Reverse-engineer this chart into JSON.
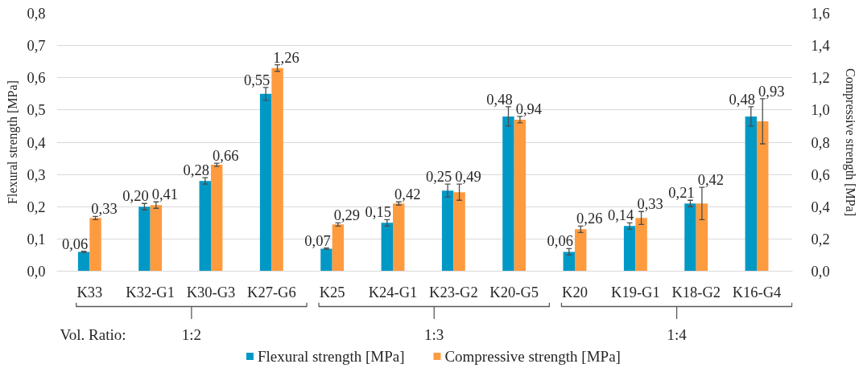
{
  "chart_data": {
    "type": "bar",
    "categories": [
      "K33",
      "K32-G1",
      "K30-G3",
      "K27-G6",
      "K25",
      "K24-G1",
      "K23-G2",
      "K20-G5",
      "K20",
      "K19-G1",
      "K18-G2",
      "K16-G4"
    ],
    "ylabel": "Flexural strength [MPa]",
    "y2label": "Compressive strength [MPa]",
    "ylim": [
      0,
      0.8
    ],
    "yticks": [
      {
        "value": 0,
        "label": "0,0"
      },
      {
        "value": 0.1,
        "label": "0,1"
      },
      {
        "value": 0.2,
        "label": "0,2"
      },
      {
        "value": 0.3,
        "label": "0,3"
      },
      {
        "value": 0.4,
        "label": "0,4"
      },
      {
        "value": 0.5,
        "label": "0,5"
      },
      {
        "value": 0.6,
        "label": "0,6"
      },
      {
        "value": 0.7,
        "label": "0,7"
      },
      {
        "value": 0.8,
        "label": "0,8"
      }
    ],
    "y2lim": [
      0,
      1.6
    ],
    "y2ticks": [
      {
        "value": 0,
        "label": "0,0"
      },
      {
        "value": 0.2,
        "label": "0,2"
      },
      {
        "value": 0.4,
        "label": "0,4"
      },
      {
        "value": 0.6,
        "label": "0,6"
      },
      {
        "value": 0.8,
        "label": "0,8"
      },
      {
        "value": 1.0,
        "label": "1,0"
      },
      {
        "value": 1.2,
        "label": "1,2"
      },
      {
        "value": 1.4,
        "label": "1,4"
      },
      {
        "value": 1.6,
        "label": "1,6"
      }
    ],
    "series": [
      {
        "name": "Flexural strength [MPa]",
        "color": "#0099c6",
        "values": [
          0.06,
          0.2,
          0.28,
          0.55,
          0.07,
          0.15,
          0.25,
          0.48,
          0.06,
          0.14,
          0.21,
          0.48
        ],
        "errors": [
          0.002,
          0.01,
          0.01,
          0.02,
          0.002,
          0.01,
          0.02,
          0.03,
          0.01,
          0.01,
          0.01,
          0.03
        ],
        "value_labels": [
          "0,06",
          "0,20",
          "0,28",
          "0,55",
          "0,07",
          "0,15",
          "0,25",
          "0,48",
          "0,06",
          "0,14",
          "0,21",
          "0,48"
        ]
      },
      {
        "name": "Compressive strength [MPa]",
        "color": "#ff9b3f",
        "axis": "y2",
        "values": [
          0.33,
          0.41,
          0.66,
          1.26,
          0.29,
          0.42,
          0.49,
          0.94,
          0.26,
          0.33,
          0.42,
          0.93
        ],
        "errors": [
          0.01,
          0.02,
          0.01,
          0.02,
          0.01,
          0.01,
          0.05,
          0.02,
          0.02,
          0.04,
          0.1,
          0.14
        ],
        "value_labels": [
          "0,33",
          "0,41",
          "0,66",
          "1,26",
          "0,29",
          "0,42",
          "0,49",
          "0,94",
          "0,26",
          "0,33",
          "0,42",
          "0,93"
        ]
      }
    ],
    "annotations": [
      "Vol. Ratio:",
      "1:2",
      "1:3",
      "1:4"
    ],
    "grid": "y",
    "legend": "bottom"
  }
}
